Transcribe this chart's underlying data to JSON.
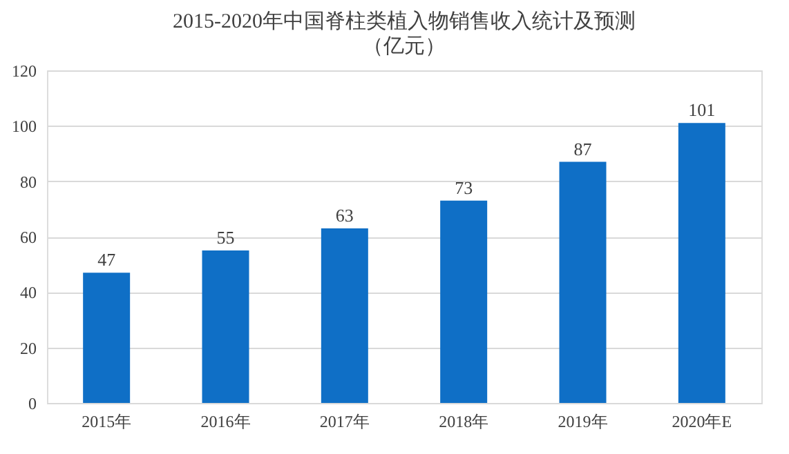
{
  "chart_data": {
    "type": "bar",
    "title": "2015-2020年中国脊柱类植入物销售收入统计及预测",
    "subtitle": "（亿元）",
    "categories": [
      "2015年",
      "2016年",
      "2017年",
      "2018年",
      "2019年",
      "2020年E"
    ],
    "values": [
      47,
      55,
      63,
      73,
      87,
      101
    ],
    "color": "#0f6fc6",
    "ylim": [
      0,
      120
    ],
    "yticks": [
      0,
      20,
      40,
      60,
      80,
      100,
      120
    ],
    "grid": "y",
    "data_labels": true
  }
}
